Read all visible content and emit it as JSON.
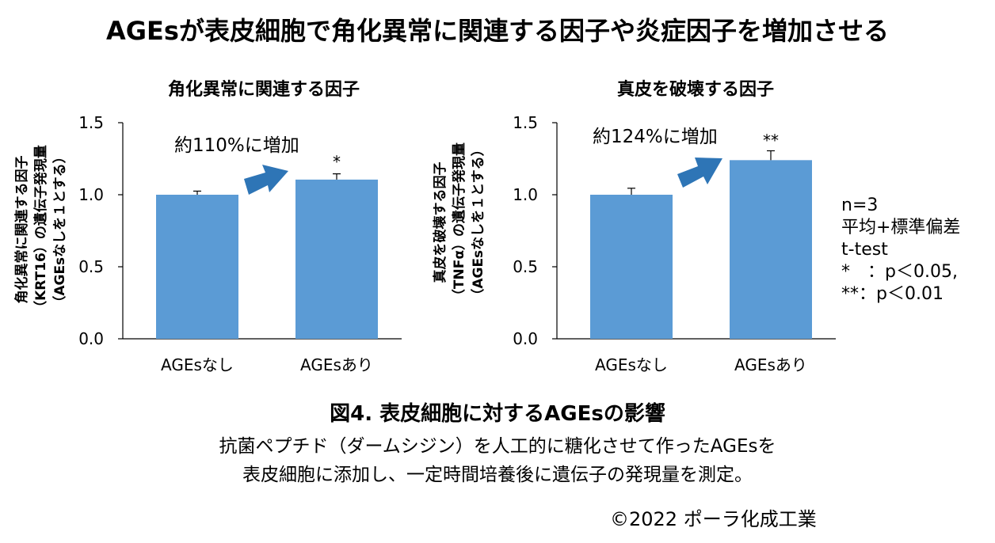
{
  "header": {
    "title": "AGEsが表皮細胞で角化異常に関連する因子や炎症因子を増加させる"
  },
  "chart_data": [
    {
      "type": "bar",
      "title": "角化異常に関連する因子",
      "ylabel_lines": [
        "角化異常に関連する因子",
        "（KRT16）の遺伝子発現量",
        "（AGEsなしを１とする）"
      ],
      "categories": [
        "AGEsなし",
        "AGEsあり"
      ],
      "values": [
        1.0,
        1.105
      ],
      "errors": [
        0.025,
        0.04
      ],
      "ylim": [
        0,
        1.5
      ],
      "yticks": [
        "0.0",
        "0.5",
        "1.0",
        "1.5"
      ],
      "significance": [
        "",
        "*"
      ],
      "annotation": "約110%に増加",
      "bar_color": "#5b9bd5",
      "arrow_color": "#2e75b6"
    },
    {
      "type": "bar",
      "title": "真皮を破壊する因子",
      "ylabel_lines": [
        "真皮を破壊する因子",
        "（TNFα）の遺伝子発現量",
        "（AGEsなしを１とする）"
      ],
      "categories": [
        "AGEsなし",
        "AGEsあり"
      ],
      "values": [
        1.0,
        1.24
      ],
      "errors": [
        0.045,
        0.065
      ],
      "ylim": [
        0,
        1.5
      ],
      "yticks": [
        "0.0",
        "0.5",
        "1.0",
        "1.5"
      ],
      "significance": [
        "",
        "**"
      ],
      "annotation": "約124%に増加",
      "bar_color": "#5b9bd5",
      "arrow_color": "#2e75b6"
    }
  ],
  "stats": {
    "text": "n=3\n平均+標準偏差\nt-test\n*　：p＜0.05,\n**：p＜0.01"
  },
  "caption": {
    "figure_title": "図4. 表皮細胞に対するAGEsの影響",
    "line1": "抗菌ペプチド（ダームシジン）を人工的に糖化させて作ったAGEsを",
    "line2": "表皮細胞に添加し、一定時間培養後に遺伝子の発現量を測定。"
  },
  "copyright": "©2022 ポーラ化成工業"
}
